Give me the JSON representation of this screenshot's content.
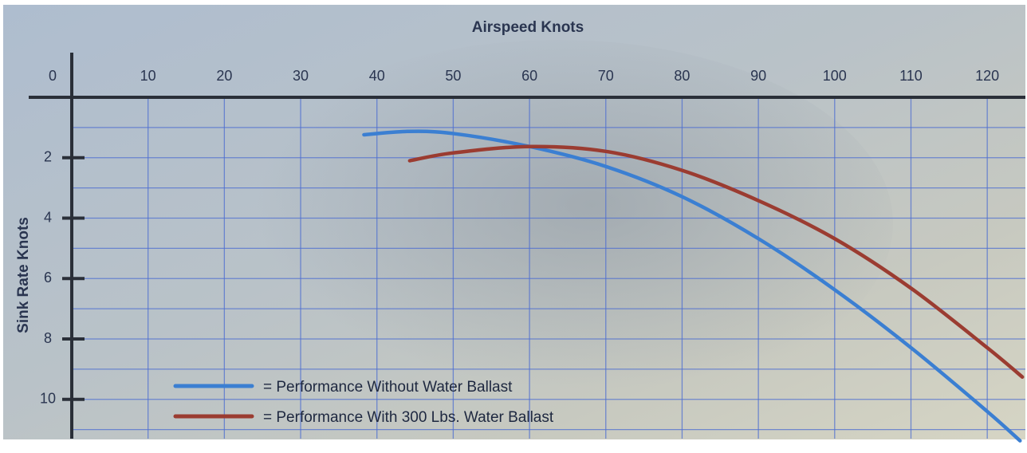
{
  "chart_data": {
    "type": "line",
    "x_label": "Airspeed Knots",
    "y_label": "Sink Rate Knots",
    "xlim": [
      0,
      125
    ],
    "xticks": [
      0,
      10,
      20,
      30,
      40,
      50,
      60,
      70,
      80,
      90,
      100,
      110,
      120
    ],
    "ylim": [
      0,
      11.3
    ],
    "yticks": [
      2,
      4,
      6,
      8,
      10
    ],
    "minor_yticks": [
      1,
      3,
      5,
      7,
      9,
      11
    ],
    "y_inverted": true,
    "grid": true,
    "series": [
      {
        "name": "= Performance Without Water Ballast",
        "color": "#3b7fd2",
        "x": [
          38.3,
          44,
          50,
          60,
          70,
          80,
          90,
          100,
          110,
          120,
          124.3
        ],
        "values": [
          1.24,
          1.13,
          1.2,
          1.63,
          2.29,
          3.29,
          4.68,
          6.37,
          8.29,
          10.4,
          11.37
        ]
      },
      {
        "name": "= Performance With 300 Lbs. Water Ballast",
        "color": "#9b3c31",
        "x": [
          44.3,
          50,
          60,
          70,
          80,
          90,
          100,
          110,
          120,
          124.6
        ],
        "values": [
          2.1,
          1.84,
          1.63,
          1.79,
          2.42,
          3.42,
          4.68,
          6.32,
          8.29,
          9.26
        ]
      }
    ]
  }
}
